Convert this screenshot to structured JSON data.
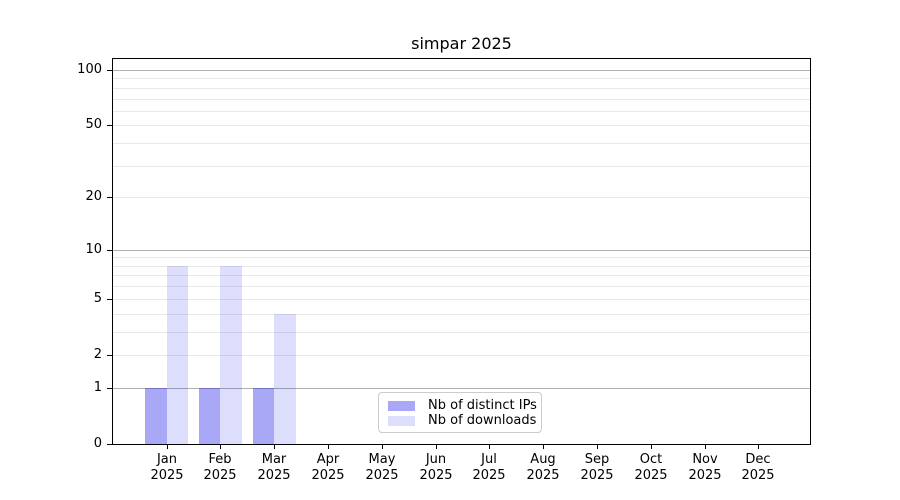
{
  "chart_data": {
    "type": "bar",
    "title": "simpar 2025",
    "categories": [
      {
        "month": "Jan",
        "year": "2025"
      },
      {
        "month": "Feb",
        "year": "2025"
      },
      {
        "month": "Mar",
        "year": "2025"
      },
      {
        "month": "Apr",
        "year": "2025"
      },
      {
        "month": "May",
        "year": "2025"
      },
      {
        "month": "Jun",
        "year": "2025"
      },
      {
        "month": "Jul",
        "year": "2025"
      },
      {
        "month": "Aug",
        "year": "2025"
      },
      {
        "month": "Sep",
        "year": "2025"
      },
      {
        "month": "Oct",
        "year": "2025"
      },
      {
        "month": "Nov",
        "year": "2025"
      },
      {
        "month": "Dec",
        "year": "2025"
      }
    ],
    "series": [
      {
        "name": "Nb of distinct IPs",
        "color": "rgba(0,0,230,0.34)",
        "solid_color": "#a8a8f6",
        "values": [
          1,
          1,
          1,
          0,
          0,
          0,
          0,
          0,
          0,
          0,
          0,
          0
        ]
      },
      {
        "name": "Nb of downloads",
        "color": "rgba(0,0,230,0.135)",
        "solid_color": "#dcdcfb",
        "values": [
          8,
          8,
          4,
          0,
          0,
          0,
          0,
          0,
          0,
          0,
          0,
          0
        ]
      }
    ],
    "yaxis": {
      "scale": "log1p",
      "tick_values": [
        0,
        1,
        2,
        5,
        10,
        20,
        50,
        100
      ],
      "major_gridline_values": [
        1,
        10,
        100
      ],
      "minor_gridline_values": [
        2,
        3,
        4,
        5,
        6,
        7,
        8,
        9,
        20,
        30,
        40,
        50,
        60,
        70,
        80,
        90
      ],
      "ylim": [
        0,
        115
      ],
      "grid": "horizontal"
    },
    "xlabel": "",
    "ylabel": "",
    "legend_position": "lower-center-inside"
  },
  "colors": {
    "background": "#ffffff",
    "spine": "#000000",
    "major_grid": "#b0b0b0",
    "minor_grid": "#e9e9e9",
    "text": "#000000",
    "legend_border": "#cccccc"
  }
}
